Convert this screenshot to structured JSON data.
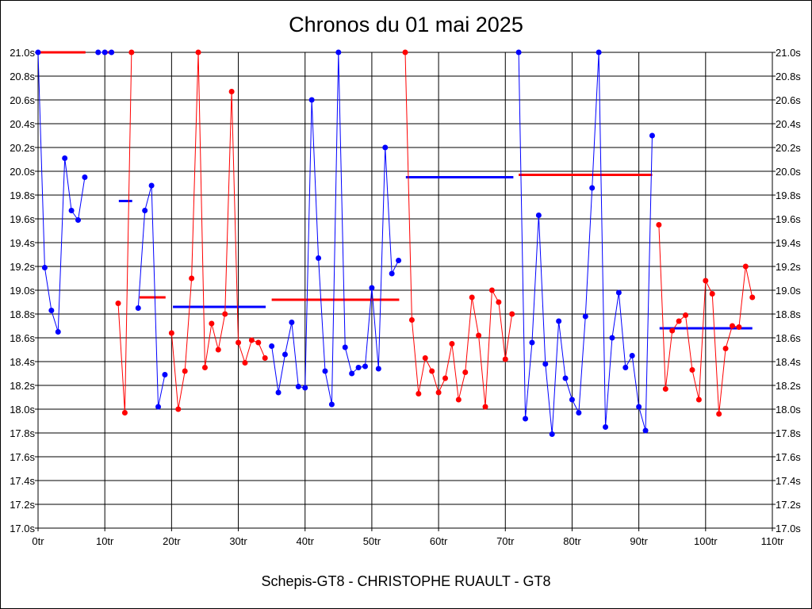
{
  "chart_data": {
    "type": "line",
    "title": "Chronos du 01 mai 2025",
    "xlabel": "Schepis-GT8 - CHRISTOPHE RUAULT - GT8",
    "ylabel": "",
    "xlim": [
      0,
      110
    ],
    "ylim": [
      17.0,
      21.0
    ],
    "grid": true,
    "x_ticks": [
      "0tr",
      "10tr",
      "20tr",
      "30tr",
      "40tr",
      "50tr",
      "60tr",
      "70tr",
      "80tr",
      "90tr",
      "100tr",
      "110tr"
    ],
    "y_ticks": [
      "17.0s",
      "17.2s",
      "17.4s",
      "17.6s",
      "17.8s",
      "18.0s",
      "18.2s",
      "18.4s",
      "18.6s",
      "18.8s",
      "19.0s",
      "19.2s",
      "19.4s",
      "19.6s",
      "19.8s",
      "20.0s",
      "20.2s",
      "20.4s",
      "20.6s",
      "20.8s",
      "21.0s"
    ],
    "colors": {
      "blue": "#0000ff",
      "red": "#ff0000",
      "grid": "#000000"
    },
    "series": [
      {
        "color": "blue",
        "x": [
          0,
          1,
          2,
          3,
          4,
          5,
          6,
          7
        ],
        "y": [
          21.0,
          19.19,
          18.83,
          18.65,
          20.11,
          19.67,
          19.59,
          19.95
        ]
      },
      {
        "color": "blue",
        "x": [
          9,
          10,
          11
        ],
        "y": [
          21.0,
          21.0,
          21.0
        ]
      },
      {
        "color": "red",
        "x": [
          12,
          13,
          14
        ],
        "y": [
          18.89,
          17.97,
          21.0
        ]
      },
      {
        "color": "blue",
        "x": [
          15,
          16,
          17,
          18,
          19
        ],
        "y": [
          18.85,
          19.67,
          19.88,
          18.02,
          18.29
        ]
      },
      {
        "color": "red",
        "x": [
          20,
          21,
          22,
          23,
          24,
          25,
          26,
          27,
          28,
          29,
          30,
          31,
          32,
          33,
          34
        ],
        "y": [
          18.64,
          18.0,
          18.32,
          19.1,
          21.0,
          18.35,
          18.72,
          18.5,
          18.8,
          20.67,
          18.56,
          18.39,
          18.58,
          18.56,
          18.43
        ]
      },
      {
        "color": "blue",
        "x": [
          35,
          36,
          37,
          38,
          39,
          40,
          41,
          42,
          43,
          44,
          45,
          46,
          47,
          48,
          49,
          50,
          51,
          52,
          53,
          54
        ],
        "y": [
          18.53,
          18.14,
          18.46,
          18.73,
          18.19,
          18.18,
          20.6,
          19.27,
          18.32,
          18.04,
          21.0,
          18.52,
          18.3,
          18.35,
          18.36,
          19.02,
          18.34,
          20.2,
          19.14,
          19.25
        ]
      },
      {
        "color": "red",
        "x": [
          55,
          56,
          57,
          58,
          59,
          60,
          61,
          62,
          63,
          64,
          65,
          66,
          67,
          68,
          69,
          70,
          71
        ],
        "y": [
          21.0,
          18.75,
          18.13,
          18.43,
          18.32,
          18.14,
          18.26,
          18.55,
          18.08,
          18.31,
          18.94,
          18.62,
          18.02,
          19.0,
          18.9,
          18.42,
          18.8
        ]
      },
      {
        "color": "blue",
        "x": [
          72,
          73,
          74,
          75,
          76,
          77,
          78,
          79,
          80,
          81,
          82,
          83,
          84,
          85,
          86,
          87,
          88,
          89,
          90,
          91,
          92
        ],
        "y": [
          21.0,
          17.92,
          18.56,
          19.63,
          18.38,
          17.79,
          18.74,
          18.26,
          18.08,
          17.97,
          18.78,
          19.86,
          21.0,
          17.85,
          18.6,
          18.98,
          18.35,
          18.45,
          18.02,
          17.82,
          20.3
        ]
      },
      {
        "color": "red",
        "x": [
          93,
          94,
          95,
          96,
          97,
          98,
          99,
          100,
          101,
          102,
          103,
          104,
          105,
          106,
          107
        ],
        "y": [
          19.55,
          18.17,
          18.66,
          18.74,
          18.79,
          18.33,
          18.08,
          19.08,
          18.97,
          17.96,
          18.51,
          18.7,
          18.69,
          19.2,
          18.94
        ]
      }
    ],
    "average_lines": [
      {
        "color": "red",
        "x": [
          0,
          7.1
        ],
        "y": 21.0
      },
      {
        "color": "red",
        "x": [
          10,
          11.4
        ],
        "y": 21.0
      },
      {
        "color": "blue",
        "x": [
          12.1,
          14.1
        ],
        "y": 19.75
      },
      {
        "color": "red",
        "x": [
          15.2,
          19.1
        ],
        "y": 18.94
      },
      {
        "color": "blue",
        "x": [
          20.2,
          34.1
        ],
        "y": 18.86
      },
      {
        "color": "red",
        "x": [
          35.0,
          54.1
        ],
        "y": 18.92
      },
      {
        "color": "blue",
        "x": [
          55.1,
          71.2
        ],
        "y": 19.95
      },
      {
        "color": "red",
        "x": [
          72.0,
          92.0
        ],
        "y": 19.97
      },
      {
        "color": "blue",
        "x": [
          93.1,
          107.0
        ],
        "y": 18.68
      }
    ]
  }
}
